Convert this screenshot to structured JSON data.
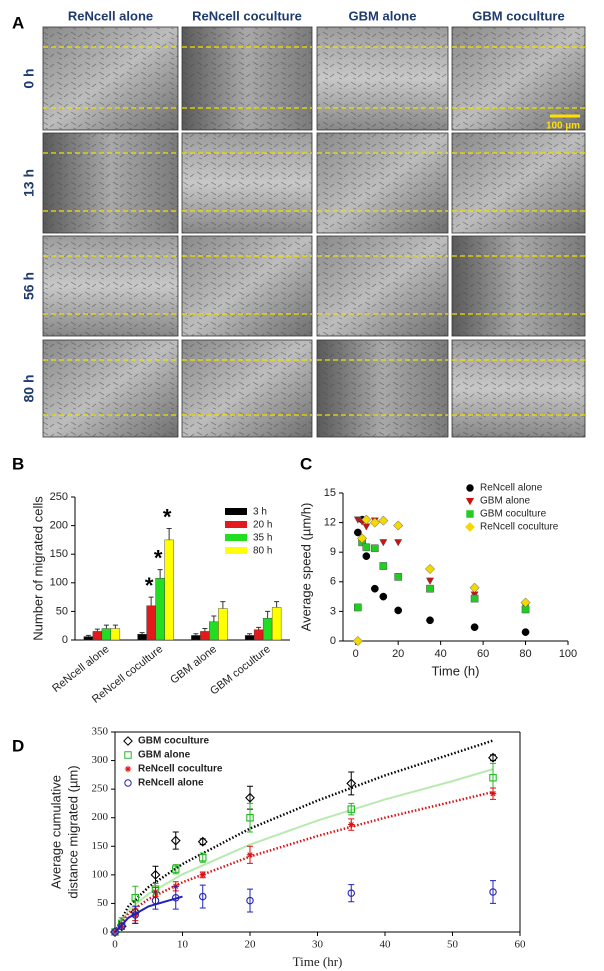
{
  "figure": {
    "panel_labels": [
      "A",
      "B",
      "C",
      "D"
    ],
    "columns": [
      "ReNcell alone",
      "ReNcell coculture",
      "GBM alone",
      "GBM coculture"
    ],
    "rows": [
      "0 h",
      "13 h",
      "56 h",
      "80 h"
    ],
    "scale_bar": "100 µm"
  },
  "chart_data": [
    {
      "type": "bar",
      "categories": [
        "ReNcell alone",
        "ReNcell coculture",
        "GBM alone",
        "GBM coculture"
      ],
      "ylabel": "Number of migrated cells",
      "ylim": [
        0,
        250
      ],
      "yticks": [
        0,
        50,
        100,
        150,
        200,
        250
      ],
      "series": [
        {
          "name": "3 h",
          "color": "#000000",
          "values": [
            6,
            10,
            8,
            8
          ],
          "errors": [
            2,
            3,
            3,
            3
          ]
        },
        {
          "name": "20 h",
          "color": "#e31a1c",
          "values": [
            15,
            60,
            15,
            18
          ],
          "errors": [
            4,
            15,
            5,
            4
          ]
        },
        {
          "name": "35 h",
          "color": "#22dd22",
          "values": [
            20,
            108,
            32,
            38
          ],
          "errors": [
            6,
            15,
            10,
            12
          ]
        },
        {
          "name": "80 h",
          "color": "#ffff00",
          "values": [
            20,
            175,
            55,
            57
          ],
          "errors": [
            6,
            20,
            12,
            10
          ]
        }
      ],
      "annotations": [
        "*",
        "*",
        "*"
      ]
    },
    {
      "type": "scatter",
      "xlabel": "Time (h)",
      "ylabel": "Average speed (µm/h)",
      "xlim": [
        -6,
        100
      ],
      "xticks": [
        0,
        20,
        40,
        60,
        80,
        100
      ],
      "ylim": [
        0,
        15
      ],
      "yticks": [
        0,
        3,
        6,
        9,
        12,
        15
      ],
      "filled": true,
      "series": [
        {
          "name": "ReNcell alone",
          "color": "#000000",
          "marker": "circle",
          "x": [
            1,
            3,
            5,
            9,
            13,
            20,
            35,
            56,
            80
          ],
          "values": [
            11.0,
            12.3,
            8.6,
            5.3,
            4.5,
            3.1,
            2.1,
            1.4,
            0.9
          ]
        },
        {
          "name": "GBM alone",
          "color": "#cc1111",
          "marker": "triangle-down",
          "x": [
            1,
            3,
            5,
            9,
            13,
            20,
            35,
            56,
            80
          ],
          "values": [
            12.3,
            12.1,
            11.6,
            12.2,
            10.0,
            10.0,
            6.1,
            4.7,
            3.5
          ]
        },
        {
          "name": "GBM coculture",
          "color": "#22cc22",
          "marker": "square",
          "x": [
            1,
            3,
            5,
            9,
            13,
            20,
            35,
            56,
            80
          ],
          "values": [
            3.4,
            10.0,
            9.5,
            9.4,
            7.6,
            6.5,
            5.3,
            4.3,
            3.2
          ]
        },
        {
          "name": "ReNcell coculture",
          "color": "#f5d800",
          "marker": "diamond",
          "x": [
            1,
            3,
            5,
            9,
            13,
            20,
            35,
            56,
            80
          ],
          "values": [
            0,
            10.4,
            12.3,
            12.0,
            12.2,
            11.7,
            7.3,
            5.4,
            3.9
          ]
        }
      ]
    },
    {
      "type": "scatter",
      "xlabel": "Time (hr)",
      "ylabel": [
        "Average cumulative",
        "distance migrated (µm)"
      ],
      "xlim": [
        0,
        60
      ],
      "xticks": [
        0,
        10,
        20,
        30,
        40,
        50,
        60
      ],
      "ylim": [
        0,
        350
      ],
      "yticks": [
        0,
        50,
        100,
        150,
        200,
        250,
        300,
        350
      ],
      "filled": false,
      "fit_x": [
        0,
        2,
        5,
        10,
        20,
        30,
        40,
        50,
        56
      ],
      "series": [
        {
          "name": "GBM coculture",
          "color": "#000000",
          "marker": "diamond",
          "fit_style": "dotted",
          "fit_color": "#000000",
          "x": [
            0,
            1,
            3,
            6,
            9,
            13,
            20,
            35,
            56
          ],
          "values": [
            0,
            10,
            35,
            100,
            160,
            158,
            235,
            260,
            305
          ],
          "errors": [
            0,
            5,
            20,
            15,
            15,
            5,
            20,
            20,
            5
          ],
          "fit_values": [
            0,
            45,
            79,
            119,
            181,
            230,
            274,
            312,
            335
          ]
        },
        {
          "name": "GBM alone",
          "color": "#22bb22",
          "marker": "square",
          "fit_style": "solid",
          "fit_color": "#b8eab0",
          "x": [
            0,
            1,
            3,
            6,
            9,
            13,
            20,
            35,
            56
          ],
          "values": [
            0,
            15,
            60,
            75,
            110,
            130,
            200,
            215,
            270
          ],
          "errors": [
            0,
            10,
            20,
            10,
            8,
            8,
            25,
            10,
            25
          ],
          "fit_values": [
            0,
            38,
            67,
            101,
            153,
            195,
            232,
            264,
            285
          ]
        },
        {
          "name": "ReNcell coculture",
          "color": "#dd1111",
          "marker": "star",
          "fit_style": "dotted",
          "fit_color": "#dd1111",
          "x": [
            0,
            1,
            3,
            6,
            9,
            13,
            20,
            35,
            56
          ],
          "values": [
            0,
            10,
            30,
            70,
            80,
            100,
            135,
            188,
            242
          ],
          "errors": [
            0,
            5,
            10,
            8,
            8,
            5,
            15,
            10,
            10
          ],
          "fit_values": [
            0,
            33,
            58,
            87,
            132,
            168,
            200,
            228,
            245
          ]
        },
        {
          "name": "ReNcell alone",
          "color": "#2222bb",
          "marker": "circle",
          "fit_style": "solid",
          "fit_color": "#2222bb",
          "x": [
            0,
            1,
            3,
            6,
            9,
            13,
            20,
            35,
            56
          ],
          "values": [
            0,
            10,
            30,
            55,
            60,
            62,
            55,
            68,
            70
          ],
          "errors": [
            0,
            5,
            15,
            15,
            20,
            20,
            20,
            15,
            20
          ],
          "fit_values": [
            0,
            25,
            45,
            62,
            null,
            null,
            null,
            null,
            null
          ]
        }
      ]
    }
  ]
}
